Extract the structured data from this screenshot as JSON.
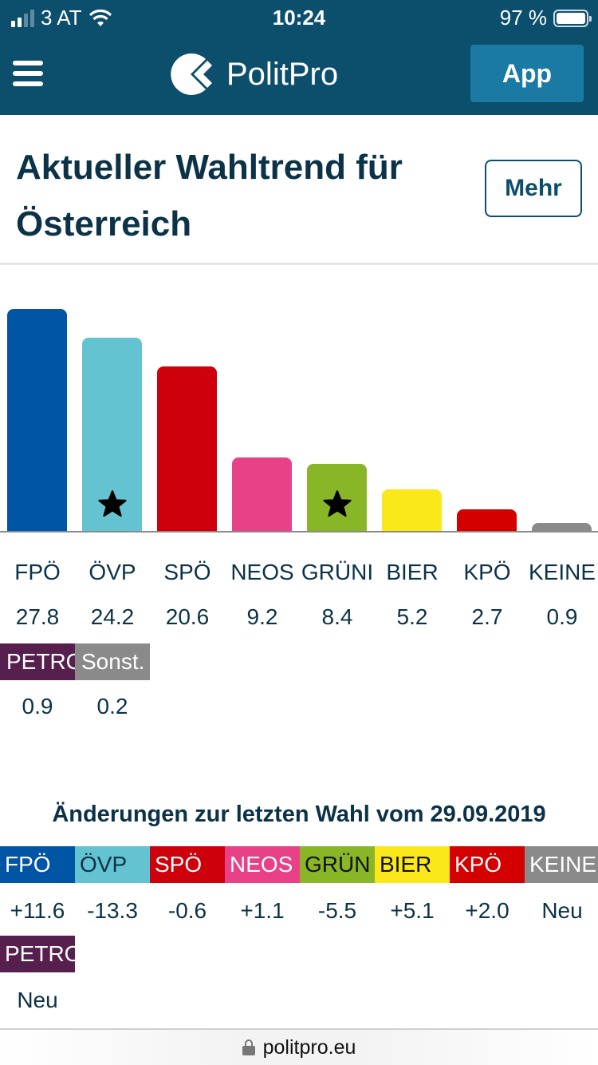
{
  "status_bar": {
    "carrier": "3 AT",
    "time": "10:24",
    "battery": "97 %"
  },
  "nav": {
    "brand": "PolitPro",
    "app_button": "App"
  },
  "header": {
    "title": "Aktueller Wahltrend für Österreich",
    "more_button": "Mehr"
  },
  "chart_data": {
    "type": "bar",
    "title": "Aktueller Wahltrend für Österreich",
    "categories": [
      "FPÖ",
      "ÖVP",
      "SPÖ",
      "NEOS",
      "GRÜNE",
      "BIER",
      "KPÖ",
      "KEINE",
      "PETROVIC",
      "Sonstige"
    ],
    "labels_displayed": [
      "FPÖ",
      "ÖVP",
      "SPÖ",
      "NEOS",
      "GRÜNI",
      "BIER",
      "KPÖ",
      "KEINE",
      "PETRO",
      "Sonst."
    ],
    "values": [
      27.8,
      24.2,
      20.6,
      9.2,
      8.4,
      5.2,
      2.7,
      0.9,
      0.9,
      0.2
    ],
    "values_display": [
      "27.8",
      "24.2",
      "20.6",
      "9.2",
      "8.4",
      "5.2",
      "2.7",
      "0.9",
      "0.9",
      "0.2"
    ],
    "colors": [
      "#0055a4",
      "#63c3d0",
      "#ce000c",
      "#e84188",
      "#88b626",
      "#fbe81a",
      "#d40000",
      "#8a8a8a",
      "#561f4e",
      "#8a8a8a"
    ],
    "starred": [
      "ÖVP",
      "GRÜNE"
    ],
    "bars_shown": 8,
    "ylim": [
      0,
      28.5
    ],
    "xlabel": "",
    "ylabel": ""
  },
  "changes": {
    "title": "Änderungen zur letzten Wahl vom 29.09.2019",
    "parties": [
      "FPÖ",
      "ÖVP",
      "SPÖ",
      "NEOS",
      "GRÜN",
      "BIER",
      "KPÖ",
      "KEINE",
      "PETRO"
    ],
    "values": [
      "+11.6",
      "-13.3",
      "-0.6",
      "+1.1",
      "-5.5",
      "+5.1",
      "+2.0",
      "Neu",
      "Neu"
    ],
    "colors": [
      "#0055a4",
      "#63c3d0",
      "#ce000c",
      "#e84188",
      "#88b626",
      "#fbe81a",
      "#d40000",
      "#8a8a8a",
      "#561f4e"
    ],
    "text_colors": [
      "#ffffff",
      "#0b3247",
      "#ffffff",
      "#ffffff",
      "#111111",
      "#111111",
      "#ffffff",
      "#ffffff",
      "#ffffff"
    ]
  },
  "url_bar": {
    "url": "politpro.eu"
  }
}
